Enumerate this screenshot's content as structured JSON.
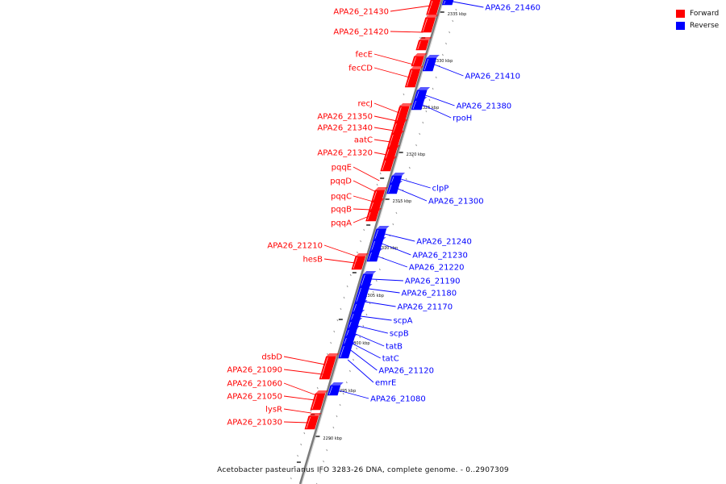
{
  "legend": {
    "forward_label": "Forward",
    "reverse_label": "Reverse",
    "forward_color": "#ff0000",
    "reverse_color": "#0000ff"
  },
  "caption": "Acetobacter pasteurianus IFO 3283-26 DNA, complete genome. - 0..2907309",
  "scale_ticks": [
    "2335 kbp",
    "2330 kbp",
    "2325 kbp",
    "2320 kbp",
    "2315 kbp",
    "2310 kbp",
    "2305 kbp",
    "2300 kbp",
    "2295 kbp",
    "2290 kbp"
  ],
  "forward_genes": [
    "APA26_21430",
    "APA26_21420",
    "fecE",
    "fecCD",
    "recJ",
    "APA26_21350",
    "APA26_21340",
    "aatC",
    "APA26_21320",
    "pqqE",
    "pqqD",
    "pqqC",
    "pqqB",
    "pqqA",
    "APA26_21210",
    "hesB",
    "dsbD",
    "APA26_21090",
    "APA26_21060",
    "APA26_21050",
    "lysR",
    "APA26_21030"
  ],
  "reverse_genes": [
    "APA26_21460",
    "APA26_21410",
    "APA26_21380",
    "rpoH",
    "clpP",
    "APA26_21300",
    "APA26_21240",
    "APA26_21230",
    "APA26_21220",
    "APA26_21190",
    "APA26_21180",
    "APA26_21170",
    "scpA",
    "scpB",
    "tatB",
    "tatC",
    "APA26_21120",
    "emrE",
    "APA26_21080"
  ]
}
